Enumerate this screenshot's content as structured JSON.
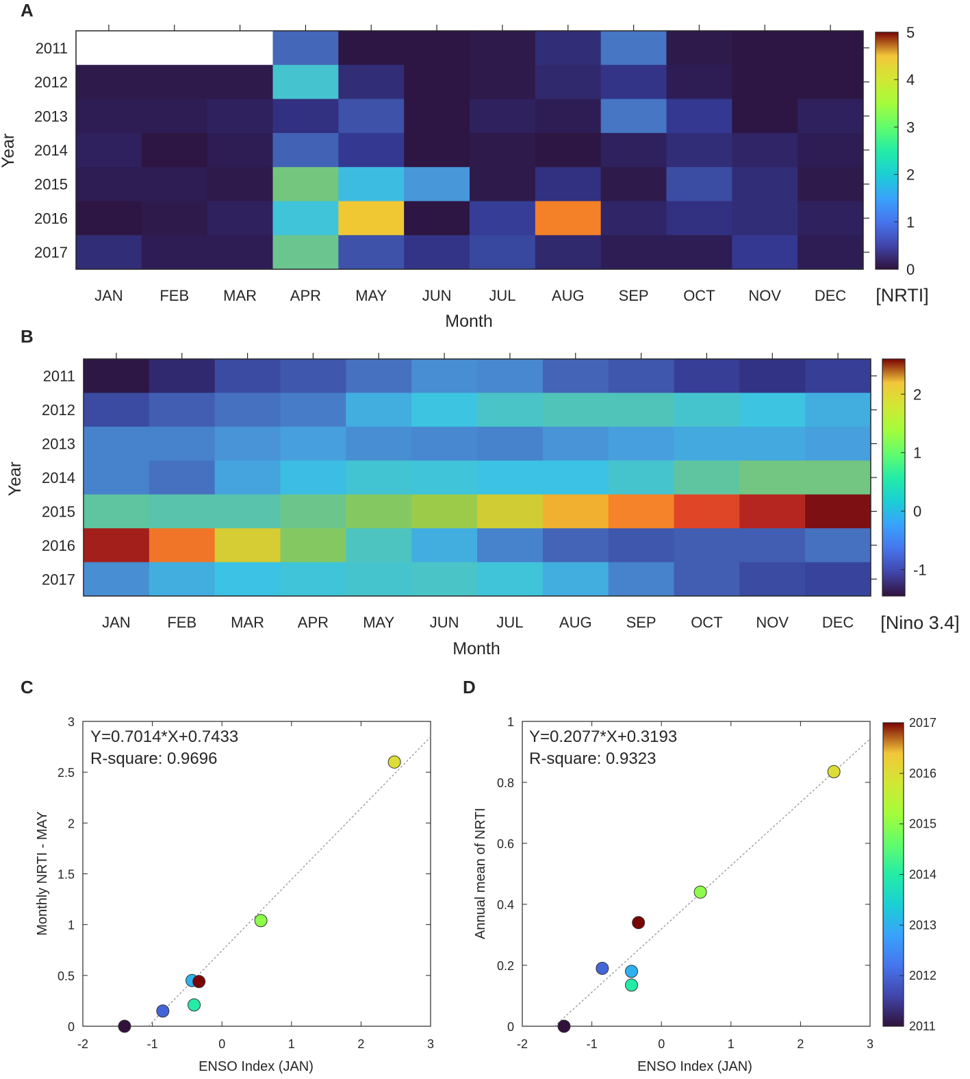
{
  "chart_data": [
    {
      "id": "A",
      "panel_label": "A",
      "type": "heatmap",
      "xlabel": "Month",
      "ylabel": "Year",
      "months": [
        "JAN",
        "FEB",
        "MAR",
        "APR",
        "MAY",
        "JUN",
        "JUL",
        "AUG",
        "SEP",
        "OCT",
        "NOV",
        "DEC"
      ],
      "years": [
        "2011",
        "2012",
        "2013",
        "2014",
        "2015",
        "2016",
        "2017"
      ],
      "values": [
        [
          null,
          null,
          null,
          0.95,
          0.05,
          0.05,
          0.1,
          0.35,
          1.1,
          0.1,
          0.05,
          0.05
        ],
        [
          0.1,
          0.1,
          0.1,
          2.2,
          0.35,
          0.05,
          0.1,
          0.3,
          0.45,
          0.15,
          0.05,
          0.05
        ],
        [
          0.15,
          0.15,
          0.2,
          0.4,
          0.75,
          0.05,
          0.2,
          0.15,
          1.1,
          0.5,
          0.05,
          0.2
        ],
        [
          0.2,
          0.05,
          0.15,
          0.9,
          0.5,
          0.05,
          0.1,
          0.05,
          0.2,
          0.35,
          0.25,
          0.15
        ],
        [
          0.15,
          0.15,
          0.1,
          2.8,
          1.9,
          1.45,
          0.1,
          0.4,
          0.1,
          0.7,
          0.35,
          0.1
        ],
        [
          0.05,
          0.1,
          0.2,
          2.1,
          4.0,
          0.05,
          0.55,
          4.4,
          0.25,
          0.4,
          0.35,
          0.2
        ],
        [
          0.35,
          0.15,
          0.15,
          2.7,
          0.75,
          0.45,
          0.65,
          0.3,
          0.15,
          0.15,
          0.5,
          0.15
        ]
      ],
      "clim": [
        0,
        5
      ],
      "colorbar_ticks": [
        0,
        1,
        2,
        3,
        4,
        5
      ],
      "colorbar_title": "[NRTI]"
    },
    {
      "id": "B",
      "panel_label": "B",
      "type": "heatmap",
      "xlabel": "Month",
      "ylabel": "Year",
      "months": [
        "JAN",
        "FEB",
        "MAR",
        "APR",
        "MAY",
        "JUN",
        "JUL",
        "AUG",
        "SEP",
        "OCT",
        "NOV",
        "DEC"
      ],
      "years": [
        "2011",
        "2012",
        "2013",
        "2014",
        "2015",
        "2016",
        "2017"
      ],
      "values": [
        [
          -1.4,
          -1.2,
          -0.9,
          -0.8,
          -0.6,
          -0.35,
          -0.4,
          -0.7,
          -0.8,
          -1.0,
          -1.1,
          -1.0
        ],
        [
          -0.9,
          -0.75,
          -0.6,
          -0.5,
          -0.05,
          0.2,
          0.4,
          0.5,
          0.5,
          0.35,
          0.2,
          -0.05
        ],
        [
          -0.45,
          -0.45,
          -0.3,
          -0.2,
          -0.35,
          -0.4,
          -0.45,
          -0.3,
          -0.2,
          -0.1,
          -0.1,
          -0.2
        ],
        [
          -0.45,
          -0.6,
          -0.15,
          0.1,
          0.3,
          0.25,
          0.15,
          0.15,
          0.35,
          0.65,
          0.8,
          0.8
        ],
        [
          0.65,
          0.6,
          0.6,
          0.75,
          0.95,
          1.15,
          1.55,
          1.9,
          2.1,
          2.3,
          2.45,
          2.6
        ],
        [
          2.5,
          2.15,
          1.6,
          0.95,
          0.45,
          -0.05,
          -0.45,
          -0.7,
          -0.8,
          -0.75,
          -0.75,
          -0.6
        ],
        [
          -0.35,
          -0.05,
          0.15,
          0.25,
          0.35,
          0.4,
          0.25,
          -0.05,
          -0.45,
          -0.75,
          -0.9,
          -0.95
        ]
      ],
      "clim": [
        -1.45,
        2.6
      ],
      "colorbar_ticks": [
        -1,
        0,
        1,
        2
      ],
      "colorbar_title": "[Nino 3.4]"
    },
    {
      "id": "C",
      "panel_label": "C",
      "type": "scatter",
      "xlabel": "ENSO Index (JAN)",
      "ylabel": "Monthly NRTI - MAY",
      "xlim": [
        -2,
        3
      ],
      "ylim": [
        0,
        3
      ],
      "xticks": [
        -2,
        -1,
        0,
        1,
        2,
        3
      ],
      "yticks": [
        0,
        0.5,
        1,
        1.5,
        2,
        2.5,
        3
      ],
      "ytick_labels": [
        "0",
        "0.5",
        "1",
        "1.5",
        "2",
        "2.5",
        "3"
      ],
      "equation": "Y=0.7014*X+0.7433",
      "r_square": "R-square: 0.9696",
      "fit": {
        "slope": 0.7014,
        "intercept": 0.7433
      },
      "points": [
        {
          "year": 2011,
          "x": -1.4,
          "y": 0.0
        },
        {
          "year": 2012,
          "x": -0.85,
          "y": 0.15
        },
        {
          "year": 2013,
          "x": -0.43,
          "y": 0.45
        },
        {
          "year": 2014,
          "x": -0.4,
          "y": 0.21
        },
        {
          "year": 2015,
          "x": 0.56,
          "y": 1.04
        },
        {
          "year": 2016,
          "x": 2.48,
          "y": 2.6
        },
        {
          "year": 2017,
          "x": -0.33,
          "y": 0.44
        }
      ]
    },
    {
      "id": "D",
      "panel_label": "D",
      "type": "scatter",
      "xlabel": "ENSO Index (JAN)",
      "ylabel": "Annual mean of NRTI",
      "xlim": [
        -2,
        3
      ],
      "ylim": [
        0,
        1
      ],
      "xticks": [
        -2,
        -1,
        0,
        1,
        2,
        3
      ],
      "yticks": [
        0,
        0.2,
        0.4,
        0.6,
        0.8,
        1
      ],
      "ytick_labels": [
        "0",
        "0.2",
        "0.4",
        "0.6",
        "0.8",
        "1"
      ],
      "equation": "Y=0.2077*X+0.3193",
      "r_square": "R-square: 0.9323",
      "fit": {
        "slope": 0.2077,
        "intercept": 0.3193
      },
      "points": [
        {
          "year": 2011,
          "x": -1.4,
          "y": 0.0
        },
        {
          "year": 2012,
          "x": -0.85,
          "y": 0.19
        },
        {
          "year": 2013,
          "x": -0.43,
          "y": 0.18
        },
        {
          "year": 2014,
          "x": -0.43,
          "y": 0.135
        },
        {
          "year": 2015,
          "x": 0.56,
          "y": 0.44
        },
        {
          "year": 2016,
          "x": 2.48,
          "y": 0.835
        },
        {
          "year": 2017,
          "x": -0.33,
          "y": 0.34
        }
      ],
      "colorbar_ticks": [
        2011,
        2012,
        2013,
        2014,
        2015,
        2016,
        2017
      ],
      "clim": [
        2011,
        2017
      ]
    }
  ]
}
